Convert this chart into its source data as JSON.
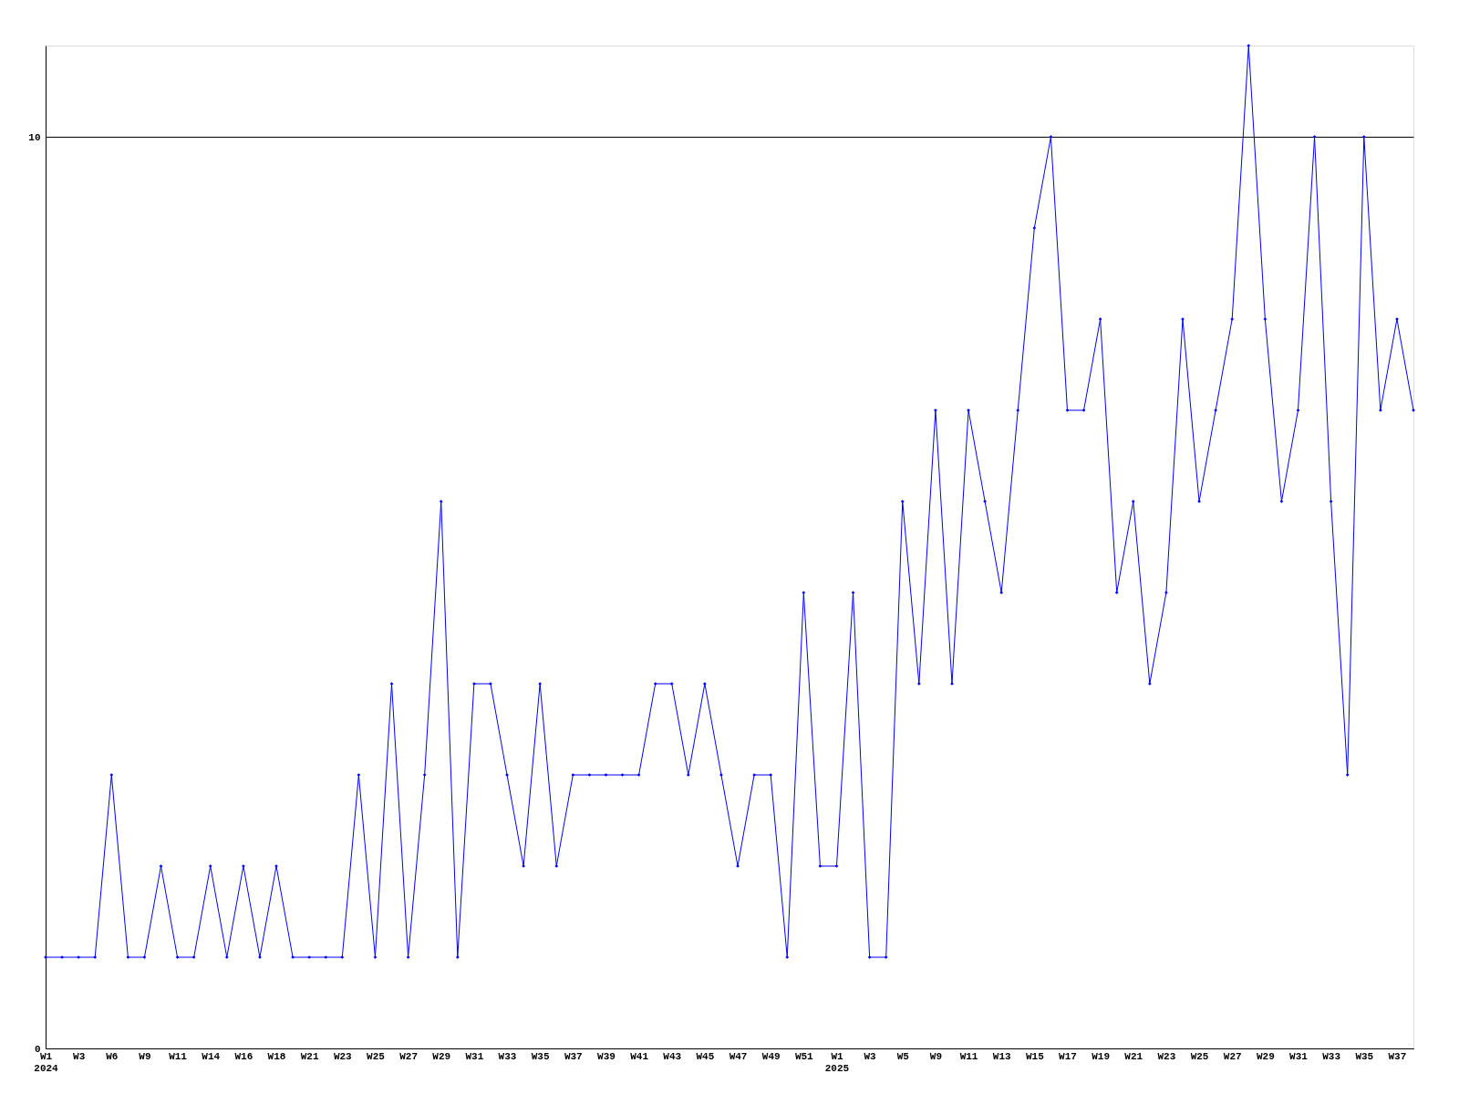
{
  "chart_data": {
    "type": "line",
    "categories": [
      "W1\n2024",
      null,
      "W3",
      null,
      "W6",
      null,
      "W9",
      null,
      "W11",
      null,
      "W14",
      null,
      "W16",
      null,
      "W18",
      null,
      "W21",
      null,
      "W23",
      null,
      "W25",
      null,
      "W27",
      null,
      "W29",
      null,
      "W31",
      null,
      "W33",
      null,
      "W35",
      null,
      "W37",
      null,
      "W39",
      null,
      "W41",
      null,
      "W43",
      null,
      "W45",
      null,
      "W47",
      null,
      "W49",
      null,
      "W51",
      null,
      "W1\n2025",
      null,
      "W3",
      null,
      "W5",
      null,
      "W9",
      null,
      "W11",
      null,
      "W13",
      null,
      "W15",
      null,
      "W17",
      null,
      "W19",
      null,
      "W21",
      null,
      "W23",
      null,
      "W25",
      null,
      "W27",
      null,
      "W29",
      null,
      "W31",
      null,
      "W33",
      null,
      "W35",
      null,
      "W37",
      null
    ],
    "series": [
      {
        "color": "#0000ff",
        "values": [
          1,
          1,
          1,
          1,
          3,
          1,
          1,
          2,
          1,
          1,
          2,
          1,
          2,
          1,
          2,
          1,
          1,
          1,
          1,
          3,
          1,
          4,
          1,
          3,
          6,
          1,
          4,
          4,
          3,
          2,
          4,
          2,
          3,
          3,
          3,
          3,
          3,
          4,
          4,
          3,
          4,
          3,
          2,
          3,
          3,
          1,
          5,
          2,
          2,
          5,
          1,
          1,
          6,
          4,
          7,
          4,
          7,
          6,
          5,
          7,
          9,
          10,
          7,
          7,
          8,
          5,
          6,
          4,
          5,
          8,
          6,
          7,
          8,
          11,
          8,
          6,
          7,
          10,
          6,
          3,
          10,
          7,
          8,
          7
        ]
      }
    ],
    "ylim": [
      0,
      11
    ],
    "yticks": [
      0,
      10
    ],
    "grid": "y",
    "marker": "diamond",
    "line_style": "solid"
  }
}
